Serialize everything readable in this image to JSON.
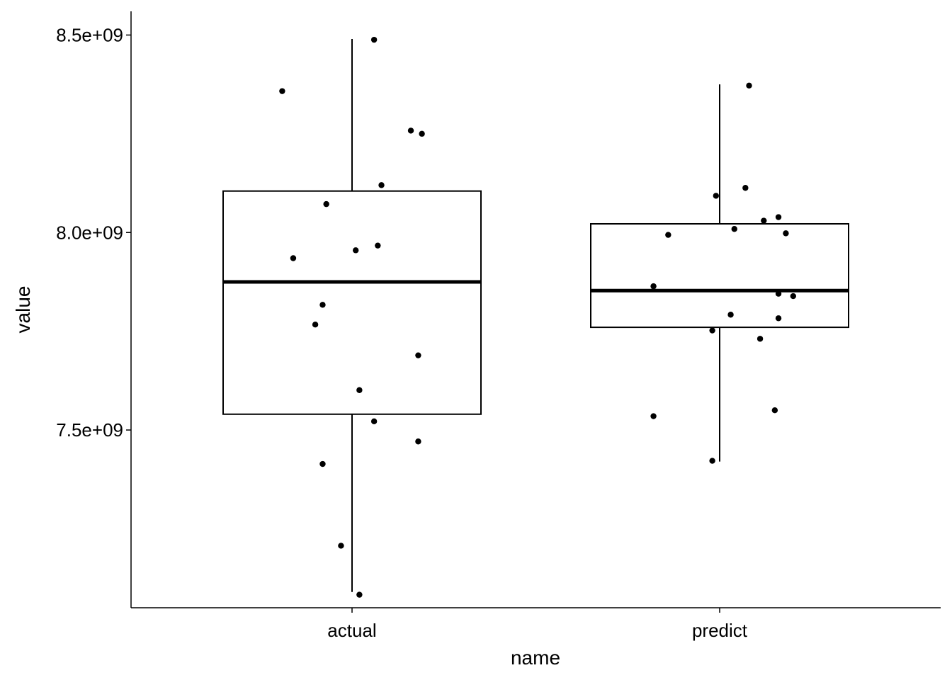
{
  "chart_data": {
    "type": "boxplot",
    "xlabel": "name",
    "ylabel": "value",
    "categories": [
      "actual",
      "predict"
    ],
    "ylim": [
      7050000000,
      8560000000
    ],
    "y_ticks": [
      {
        "value": 7500000000,
        "label": "7.5e+09"
      },
      {
        "value": 8000000000,
        "label": "8.0e+09"
      },
      {
        "value": 8500000000,
        "label": "8.5e+09"
      }
    ],
    "boxes": [
      {
        "category": "actual",
        "whisker_low": 7090000000,
        "q1": 7540000000,
        "median": 7875000000,
        "q3": 8105000000,
        "whisker_high": 8490000000
      },
      {
        "category": "predict",
        "whisker_low": 7420000000,
        "q1": 7760000000,
        "median": 7853000000,
        "q3": 8022000000,
        "whisker_high": 8375000000
      }
    ],
    "points": [
      {
        "category": "actual",
        "jitter": 0.06,
        "y": 8488000000
      },
      {
        "category": "actual",
        "jitter": -0.19,
        "y": 8358000000
      },
      {
        "category": "actual",
        "jitter": 0.16,
        "y": 8258000000
      },
      {
        "category": "actual",
        "jitter": 0.19,
        "y": 8250000000
      },
      {
        "category": "actual",
        "jitter": 0.08,
        "y": 8120000000
      },
      {
        "category": "actual",
        "jitter": -0.07,
        "y": 8072000000
      },
      {
        "category": "actual",
        "jitter": 0.07,
        "y": 7967000000
      },
      {
        "category": "actual",
        "jitter": 0.01,
        "y": 7955000000
      },
      {
        "category": "actual",
        "jitter": -0.16,
        "y": 7935000000
      },
      {
        "category": "actual",
        "jitter": -0.08,
        "y": 7817000000
      },
      {
        "category": "actual",
        "jitter": -0.1,
        "y": 7767000000
      },
      {
        "category": "actual",
        "jitter": 0.18,
        "y": 7689000000
      },
      {
        "category": "actual",
        "jitter": 0.02,
        "y": 7601000000
      },
      {
        "category": "actual",
        "jitter": 0.06,
        "y": 7522000000
      },
      {
        "category": "actual",
        "jitter": 0.18,
        "y": 7471000000
      },
      {
        "category": "actual",
        "jitter": -0.08,
        "y": 7414000000
      },
      {
        "category": "actual",
        "jitter": -0.03,
        "y": 7207000000
      },
      {
        "category": "actual",
        "jitter": 0.02,
        "y": 7083000000
      },
      {
        "category": "predict",
        "jitter": 0.08,
        "y": 8372000000
      },
      {
        "category": "predict",
        "jitter": 0.07,
        "y": 8113000000
      },
      {
        "category": "predict",
        "jitter": -0.01,
        "y": 8093000000
      },
      {
        "category": "predict",
        "jitter": 0.16,
        "y": 8039000000
      },
      {
        "category": "predict",
        "jitter": 0.12,
        "y": 8030000000
      },
      {
        "category": "predict",
        "jitter": 0.04,
        "y": 8009000000
      },
      {
        "category": "predict",
        "jitter": 0.18,
        "y": 7998000000
      },
      {
        "category": "predict",
        "jitter": -0.14,
        "y": 7994000000
      },
      {
        "category": "predict",
        "jitter": -0.18,
        "y": 7864000000
      },
      {
        "category": "predict",
        "jitter": 0.16,
        "y": 7845000000
      },
      {
        "category": "predict",
        "jitter": 0.2,
        "y": 7839000000
      },
      {
        "category": "predict",
        "jitter": 0.03,
        "y": 7792000000
      },
      {
        "category": "predict",
        "jitter": 0.16,
        "y": 7783000000
      },
      {
        "category": "predict",
        "jitter": -0.02,
        "y": 7752000000
      },
      {
        "category": "predict",
        "jitter": 0.11,
        "y": 7731000000
      },
      {
        "category": "predict",
        "jitter": 0.15,
        "y": 7550000000
      },
      {
        "category": "predict",
        "jitter": -0.18,
        "y": 7535000000
      },
      {
        "category": "predict",
        "jitter": -0.02,
        "y": 7422000000
      }
    ],
    "grid": false,
    "legend": "none",
    "colors": {
      "stroke": "#000000",
      "points": "#000000",
      "background": "#ffffff"
    }
  }
}
